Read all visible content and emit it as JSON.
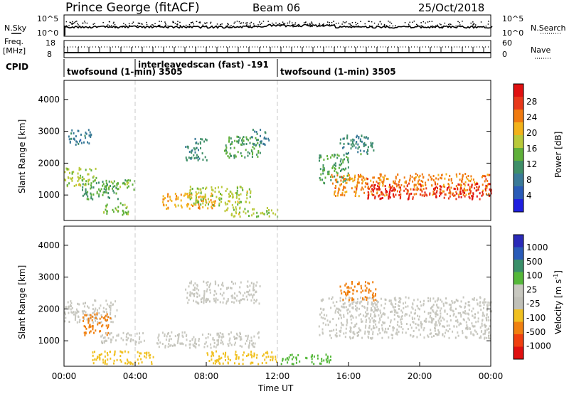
{
  "header": {
    "station": "Prince George (fitACF)",
    "beam": "Beam 06",
    "date": "25/Oct/2018"
  },
  "summary_panel": {
    "left_label": "N.Sky",
    "right_label": "N.Search",
    "left_ticks": [
      "10^5",
      "10^0"
    ],
    "right_ticks": [
      "10^5",
      "10^0"
    ],
    "freq_label_line1": "Freq.",
    "freq_label_line2": "[MHz]",
    "freq_ticks": [
      "18",
      "8"
    ],
    "nave_label": "Nave",
    "nave_ticks": [
      "60",
      "0"
    ],
    "cpid_label": "CPID"
  },
  "cpid_segments": [
    {
      "name": "twofsound (1-min) 3505",
      "start_hour": 0,
      "end_hour": 4.0
    },
    {
      "name": "interleavedscan (fast) -191",
      "start_hour": 4.0,
      "end_hour": 12.0
    },
    {
      "name": "twofsound (1-min) 3505",
      "start_hour": 12.0,
      "end_hour": 24.0
    }
  ],
  "colors": {
    "power_scale": [
      "#1f1fe0",
      "#2a5bb8",
      "#3a7a98",
      "#3f8f68",
      "#5fb03a",
      "#b9c93a",
      "#f2b21a",
      "#f07a10",
      "#e8381a",
      "#e01010"
    ],
    "velocity_scale": [
      "#2a2ab8",
      "#2a5bb8",
      "#3a8f6a",
      "#55b83a",
      "#c8c8c0",
      "#c0c0b8",
      "#f0c020",
      "#f08010",
      "#f04010",
      "#e01010"
    ],
    "gridline": "#c8c8c8"
  },
  "chart_data": [
    {
      "type": "heatmap",
      "panel": "power",
      "ylabel": "Slant Range [km]",
      "ylim": [
        200,
        4600
      ],
      "xlim_hours": [
        0,
        24
      ],
      "yticks": [
        "1000",
        "2000",
        "3000",
        "4000"
      ],
      "xticks": [
        "00:00",
        "04:00",
        "08:00",
        "12:00",
        "16:00",
        "20:00",
        "00:00"
      ],
      "colorbar_label": "Power [dB]",
      "colorbar_ticks": [
        "28",
        "24",
        "20",
        "16",
        "12",
        "8",
        "4"
      ],
      "colorbar_range": [
        0,
        30
      ],
      "regions": [
        {
          "t0": 0.0,
          "t1": 1.8,
          "r0": 1300,
          "r1": 1900,
          "value": 16
        },
        {
          "t0": 0.2,
          "t1": 1.5,
          "r0": 2600,
          "r1": 3100,
          "value": 8
        },
        {
          "t0": 1.0,
          "t1": 3.0,
          "r0": 900,
          "r1": 1500,
          "value": 12
        },
        {
          "t0": 2.0,
          "t1": 4.0,
          "r0": 1200,
          "r1": 1500,
          "value": 14
        },
        {
          "t0": 2.2,
          "t1": 3.6,
          "r0": 400,
          "r1": 800,
          "value": 14
        },
        {
          "t0": 5.5,
          "t1": 8.5,
          "r0": 600,
          "r1": 1100,
          "value": 20
        },
        {
          "t0": 7.0,
          "t1": 10.5,
          "r0": 700,
          "r1": 1300,
          "value": 16
        },
        {
          "t0": 6.8,
          "t1": 8.0,
          "r0": 2100,
          "r1": 2800,
          "value": 10
        },
        {
          "t0": 9.0,
          "t1": 11.0,
          "r0": 2200,
          "r1": 2900,
          "value": 12
        },
        {
          "t0": 10.5,
          "t1": 11.5,
          "r0": 2600,
          "r1": 3100,
          "value": 8
        },
        {
          "t0": 9.0,
          "t1": 12.0,
          "r0": 350,
          "r1": 650,
          "value": 16
        },
        {
          "t0": 14.3,
          "t1": 16.0,
          "r0": 1400,
          "r1": 2300,
          "value": 12
        },
        {
          "t0": 15.0,
          "t1": 24.0,
          "r0": 1000,
          "r1": 1700,
          "value": 22
        },
        {
          "t0": 17.0,
          "t1": 24.0,
          "r0": 900,
          "r1": 1400,
          "value": 27
        },
        {
          "t0": 15.5,
          "t1": 17.5,
          "r0": 2300,
          "r1": 2900,
          "value": 10
        }
      ]
    },
    {
      "type": "heatmap",
      "panel": "velocity",
      "ylabel": "Slant Range [km]",
      "ylim": [
        200,
        4600
      ],
      "xlim_hours": [
        0,
        24
      ],
      "yticks": [
        "1000",
        "2000",
        "3000",
        "4000"
      ],
      "xticks": [
        "00:00",
        "04:00",
        "08:00",
        "12:00",
        "16:00",
        "20:00",
        "00:00"
      ],
      "xlabel": "Time UT",
      "colorbar_label": "Velocity [m s",
      "colorbar_label_sup": "-1",
      "colorbar_label_end": "]",
      "colorbar_ticks": [
        "1000",
        "500",
        "100",
        "25",
        "-25",
        "-100",
        "-500",
        "-1000"
      ],
      "regions": [
        {
          "t0": 0.0,
          "t1": 3.0,
          "r0": 1600,
          "r1": 2300,
          "value": 0
        },
        {
          "t0": 1.0,
          "t1": 2.6,
          "r0": 1200,
          "r1": 1900,
          "value": -150
        },
        {
          "t0": 2.0,
          "t1": 4.5,
          "r0": 900,
          "r1": 1300,
          "value": 0
        },
        {
          "t0": 1.5,
          "t1": 5.0,
          "r0": 300,
          "r1": 700,
          "value": -60
        },
        {
          "t0": 5.0,
          "t1": 11.0,
          "r0": 800,
          "r1": 1300,
          "value": 0
        },
        {
          "t0": 6.8,
          "t1": 11.0,
          "r0": 2200,
          "r1": 2900,
          "value": 0
        },
        {
          "t0": 8.0,
          "t1": 12.0,
          "r0": 300,
          "r1": 700,
          "value": -60
        },
        {
          "t0": 12.0,
          "t1": 15.0,
          "r0": 300,
          "r1": 600,
          "value": 60
        },
        {
          "t0": 14.3,
          "t1": 24.0,
          "r0": 1100,
          "r1": 2400,
          "value": 0
        },
        {
          "t0": 15.5,
          "t1": 17.5,
          "r0": 2300,
          "r1": 2900,
          "value": -300
        }
      ]
    }
  ]
}
